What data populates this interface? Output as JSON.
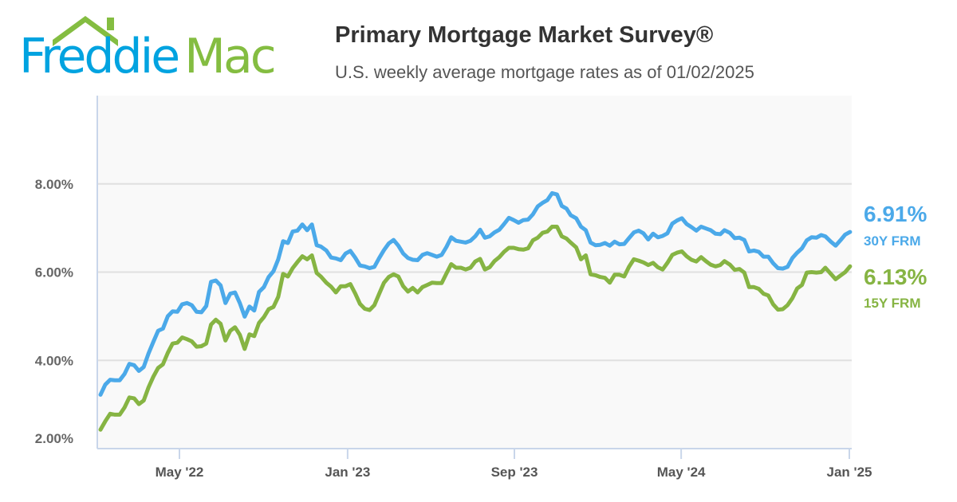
{
  "logo": {
    "part1": "Freddie",
    "part2": "Mac",
    "colors": {
      "blue": "#00a3e0",
      "green": "#84bd41"
    }
  },
  "header": {
    "title": "Primary Mortgage Market Survey®",
    "subtitle": "U.S. weekly average mortgage rates as of 01/02/2025"
  },
  "chart_data": {
    "type": "line",
    "title": "Primary Mortgage Market Survey®",
    "subtitle": "U.S. weekly average mortgage rates as of 01/02/2025",
    "ylim": [
      2,
      10
    ],
    "y_ticks": [
      "2.00%",
      "4.00%",
      "6.00%",
      "8.00%"
    ],
    "y_tick_values": [
      2,
      4,
      6,
      8
    ],
    "x_ticks": [
      "May '22",
      "Jan '23",
      "Sep '23",
      "May '24",
      "Jan '25"
    ],
    "x_tick_dates": [
      "2022-05-01",
      "2023-01-01",
      "2023-09-01",
      "2024-05-01",
      "2025-01-01"
    ],
    "grid": true,
    "x": [
      "2022-01-06",
      "2022-01-13",
      "2022-01-20",
      "2022-01-27",
      "2022-02-03",
      "2022-02-10",
      "2022-02-17",
      "2022-02-24",
      "2022-03-03",
      "2022-03-10",
      "2022-03-17",
      "2022-03-24",
      "2022-03-31",
      "2022-04-07",
      "2022-04-14",
      "2022-04-21",
      "2022-04-28",
      "2022-05-05",
      "2022-05-12",
      "2022-05-19",
      "2022-05-26",
      "2022-06-02",
      "2022-06-09",
      "2022-06-16",
      "2022-06-23",
      "2022-06-30",
      "2022-07-07",
      "2022-07-14",
      "2022-07-21",
      "2022-07-28",
      "2022-08-04",
      "2022-08-11",
      "2022-08-18",
      "2022-08-25",
      "2022-09-01",
      "2022-09-08",
      "2022-09-15",
      "2022-09-22",
      "2022-09-29",
      "2022-10-06",
      "2022-10-13",
      "2022-10-20",
      "2022-10-27",
      "2022-11-03",
      "2022-11-10",
      "2022-11-17",
      "2022-11-23",
      "2022-12-01",
      "2022-12-08",
      "2022-12-15",
      "2022-12-22",
      "2022-12-29",
      "2023-01-05",
      "2023-01-12",
      "2023-01-19",
      "2023-01-26",
      "2023-02-02",
      "2023-02-09",
      "2023-02-16",
      "2023-02-23",
      "2023-03-02",
      "2023-03-09",
      "2023-03-16",
      "2023-03-23",
      "2023-03-30",
      "2023-04-06",
      "2023-04-13",
      "2023-04-20",
      "2023-04-27",
      "2023-05-04",
      "2023-05-11",
      "2023-05-18",
      "2023-05-25",
      "2023-06-01",
      "2023-06-08",
      "2023-06-15",
      "2023-06-22",
      "2023-06-29",
      "2023-07-06",
      "2023-07-13",
      "2023-07-20",
      "2023-07-27",
      "2023-08-03",
      "2023-08-10",
      "2023-08-17",
      "2023-08-24",
      "2023-08-31",
      "2023-09-07",
      "2023-09-14",
      "2023-09-21",
      "2023-09-28",
      "2023-10-05",
      "2023-10-12",
      "2023-10-19",
      "2023-10-26",
      "2023-11-02",
      "2023-11-09",
      "2023-11-16",
      "2023-11-22",
      "2023-11-30",
      "2023-12-07",
      "2023-12-14",
      "2023-12-21",
      "2023-12-28",
      "2024-01-04",
      "2024-01-11",
      "2024-01-18",
      "2024-01-25",
      "2024-02-01",
      "2024-02-08",
      "2024-02-15",
      "2024-02-22",
      "2024-02-29",
      "2024-03-07",
      "2024-03-14",
      "2024-03-21",
      "2024-03-28",
      "2024-04-04",
      "2024-04-11",
      "2024-04-18",
      "2024-04-25",
      "2024-05-02",
      "2024-05-09",
      "2024-05-16",
      "2024-05-23",
      "2024-05-30",
      "2024-06-06",
      "2024-06-13",
      "2024-06-20",
      "2024-06-27",
      "2024-07-03",
      "2024-07-11",
      "2024-07-18",
      "2024-07-25",
      "2024-08-01",
      "2024-08-08",
      "2024-08-15",
      "2024-08-22",
      "2024-08-29",
      "2024-09-05",
      "2024-09-12",
      "2024-09-19",
      "2024-09-26",
      "2024-10-03",
      "2024-10-10",
      "2024-10-17",
      "2024-10-24",
      "2024-10-31",
      "2024-11-07",
      "2024-11-14",
      "2024-11-21",
      "2024-11-27",
      "2024-12-05",
      "2024-12-12",
      "2024-12-19",
      "2024-12-26",
      "2025-01-02"
    ],
    "series": [
      {
        "name": "30Y FRM",
        "color": "#4ba9e9",
        "last_label": "6.91%",
        "values": [
          3.22,
          3.45,
          3.56,
          3.55,
          3.55,
          3.69,
          3.92,
          3.89,
          3.76,
          3.85,
          4.16,
          4.42,
          4.67,
          4.72,
          5.0,
          5.11,
          5.1,
          5.27,
          5.3,
          5.25,
          5.1,
          5.09,
          5.23,
          5.78,
          5.81,
          5.7,
          5.3,
          5.51,
          5.54,
          5.3,
          4.99,
          5.22,
          5.13,
          5.55,
          5.66,
          5.89,
          6.02,
          6.29,
          6.7,
          6.66,
          6.92,
          6.94,
          7.08,
          6.95,
          7.08,
          6.61,
          6.58,
          6.49,
          6.33,
          6.31,
          6.27,
          6.42,
          6.48,
          6.33,
          6.15,
          6.13,
          6.09,
          6.12,
          6.32,
          6.5,
          6.65,
          6.73,
          6.6,
          6.42,
          6.32,
          6.28,
          6.27,
          6.39,
          6.43,
          6.39,
          6.35,
          6.39,
          6.57,
          6.79,
          6.71,
          6.69,
          6.67,
          6.71,
          6.81,
          6.96,
          6.78,
          6.81,
          6.9,
          6.96,
          7.09,
          7.23,
          7.18,
          7.12,
          7.18,
          7.19,
          7.31,
          7.49,
          7.57,
          7.63,
          7.79,
          7.76,
          7.5,
          7.44,
          7.29,
          7.22,
          7.03,
          6.95,
          6.67,
          6.61,
          6.62,
          6.66,
          6.6,
          6.69,
          6.63,
          6.64,
          6.77,
          6.9,
          6.94,
          6.88,
          6.74,
          6.87,
          6.79,
          6.82,
          6.88,
          7.1,
          7.17,
          7.22,
          7.09,
          7.02,
          6.94,
          7.03,
          6.99,
          6.95,
          6.87,
          6.86,
          6.95,
          6.89,
          6.77,
          6.78,
          6.73,
          6.47,
          6.49,
          6.46,
          6.35,
          6.35,
          6.2,
          6.09,
          6.08,
          6.12,
          6.32,
          6.44,
          6.54,
          6.72,
          6.79,
          6.78,
          6.84,
          6.81,
          6.69,
          6.6,
          6.72,
          6.85,
          6.91
        ]
      },
      {
        "name": "15Y FRM",
        "color": "#86b443",
        "last_label": "6.13%",
        "values": [
          2.43,
          2.62,
          2.79,
          2.77,
          2.77,
          2.93,
          3.16,
          3.14,
          3.01,
          3.09,
          3.39,
          3.63,
          3.83,
          3.91,
          4.17,
          4.38,
          4.4,
          4.52,
          4.48,
          4.43,
          4.31,
          4.32,
          4.38,
          4.81,
          4.92,
          4.83,
          4.45,
          4.67,
          4.75,
          4.58,
          4.26,
          4.59,
          4.55,
          4.85,
          4.98,
          5.16,
          5.21,
          5.44,
          5.96,
          5.9,
          6.09,
          6.23,
          6.36,
          6.29,
          6.38,
          5.98,
          5.9,
          5.76,
          5.67,
          5.54,
          5.68,
          5.68,
          5.73,
          5.52,
          5.28,
          5.17,
          5.14,
          5.25,
          5.51,
          5.76,
          5.89,
          5.95,
          5.9,
          5.68,
          5.56,
          5.64,
          5.54,
          5.66,
          5.71,
          5.76,
          5.75,
          5.75,
          5.97,
          6.18,
          6.1,
          6.1,
          6.06,
          6.1,
          6.24,
          6.3,
          6.06,
          6.11,
          6.25,
          6.34,
          6.46,
          6.55,
          6.55,
          6.52,
          6.51,
          6.54,
          6.72,
          6.78,
          6.89,
          6.92,
          7.03,
          7.03,
          6.81,
          6.76,
          6.67,
          6.56,
          6.29,
          6.38,
          5.95,
          5.93,
          5.89,
          5.87,
          5.76,
          5.94,
          5.94,
          5.9,
          6.12,
          6.29,
          6.26,
          6.22,
          6.16,
          6.21,
          6.11,
          6.06,
          6.21,
          6.39,
          6.44,
          6.47,
          6.36,
          6.28,
          6.24,
          6.34,
          6.25,
          6.17,
          6.13,
          6.16,
          6.25,
          6.17,
          6.05,
          6.07,
          5.99,
          5.66,
          5.66,
          5.62,
          5.51,
          5.47,
          5.27,
          5.15,
          5.16,
          5.25,
          5.41,
          5.63,
          5.71,
          5.99,
          6.0,
          5.99,
          6.0,
          6.1,
          5.96,
          5.84,
          5.92,
          6.0,
          6.13
        ]
      }
    ]
  }
}
